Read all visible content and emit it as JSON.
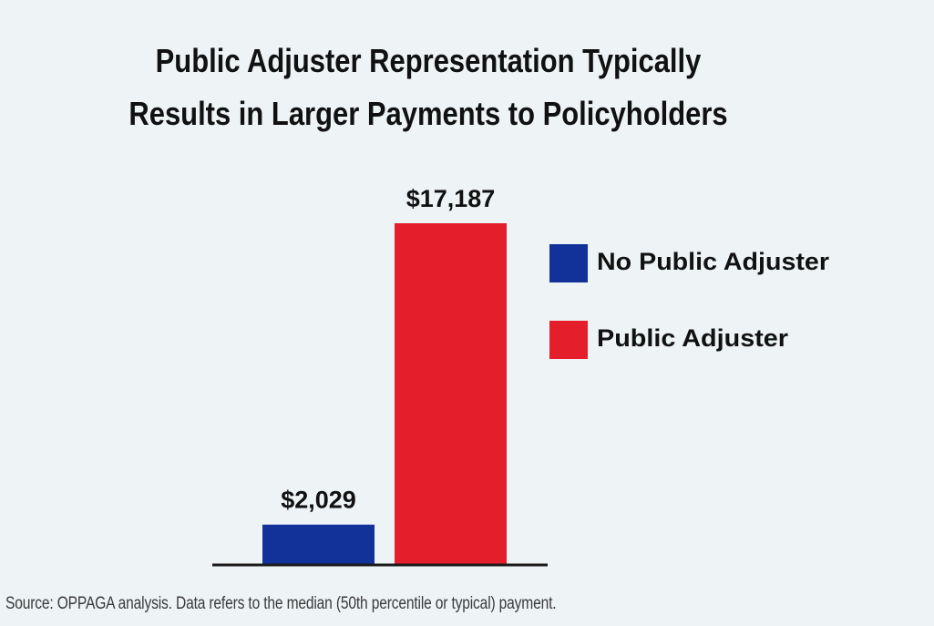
{
  "chart_data": {
    "type": "bar",
    "title_lines": [
      "Public Adjuster Representation Typically",
      "Results in Larger Payments to Policyholders"
    ],
    "categories": [
      "No Public Adjuster",
      "Public Adjuster"
    ],
    "values": [
      2029,
      17187
    ],
    "value_labels": [
      "$2,029",
      "$17,187"
    ],
    "colors": [
      "#12329a",
      "#e41f2b"
    ],
    "legend": {
      "placement": "right",
      "entries": [
        "No Public Adjuster",
        "Public Adjuster"
      ]
    },
    "ylim": [
      0,
      17187
    ],
    "grid": false,
    "xlabel": "",
    "ylabel": "",
    "source": "Source: OPPAGA analysis. Data refers to the median (50th percentile or typical) payment."
  }
}
